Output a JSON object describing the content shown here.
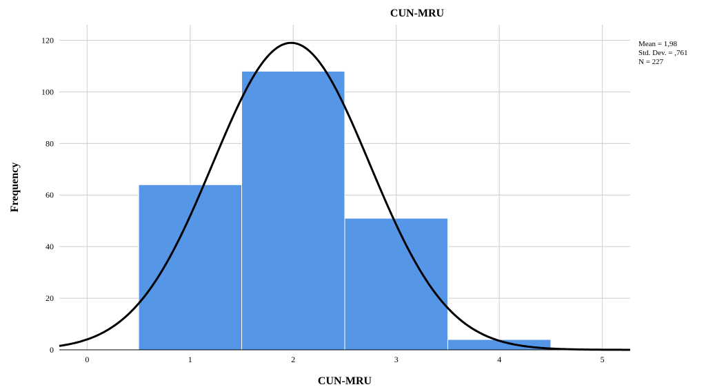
{
  "chart_data": {
    "type": "bar",
    "title": "CUN-MRU",
    "xlabel": "CUN-MRU",
    "ylabel": "Frequency",
    "x_ticks": [
      "0",
      "1",
      "2",
      "3",
      "4",
      "5"
    ],
    "y_ticks": [
      "0",
      "20",
      "40",
      "60",
      "80",
      "100",
      "120"
    ],
    "xlim": [
      -0.27,
      5.27
    ],
    "ylim": [
      0,
      126
    ],
    "categories": [
      1,
      2,
      3,
      4
    ],
    "values": [
      64,
      108,
      51,
      4
    ],
    "bar_color": "#5596e6",
    "grid": true,
    "normal_curve": {
      "mean": 1.98,
      "std": 0.761,
      "n": 227
    },
    "stats_lines": [
      "Mean = 1,98",
      "Std. Dev. = ,761",
      "N = 227"
    ],
    "legend_position": "top-right"
  }
}
